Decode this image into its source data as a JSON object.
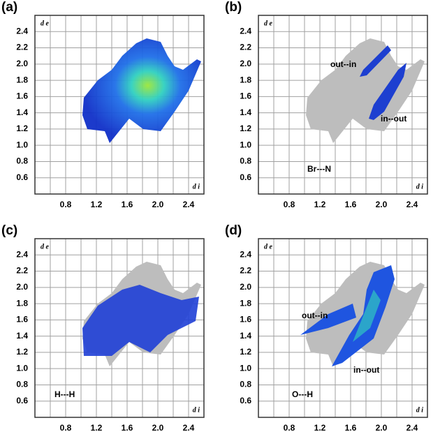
{
  "chart_data": [
    {
      "type": "scatter",
      "panel_label": "(a)",
      "xlabel": "d i",
      "ylabel": "d e",
      "xlim": [
        0.4,
        2.6
      ],
      "ylim": [
        0.4,
        2.6
      ],
      "xticks": [
        0.8,
        1.2,
        1.6,
        {
          "value": 2,
          "label": "2.0"
        },
        2.4
      ],
      "yticks": [
        0.6,
        0.8,
        {
          "value": 1,
          "label": "1.0"
        },
        1.2,
        1.4,
        1.6,
        1.8,
        {
          "value": 2,
          "label": "2.0"
        },
        2.2,
        2.4
      ],
      "grid": true,
      "annotations": []
    },
    {
      "type": "scatter",
      "panel_label": "(b)",
      "xlabel": "d i",
      "ylabel": "d e",
      "xlim": [
        0.4,
        2.6
      ],
      "ylim": [
        0.4,
        2.6
      ],
      "xticks": [
        0.8,
        1.2,
        1.6,
        {
          "value": 2,
          "label": "2.0"
        },
        2.4
      ],
      "yticks": [
        0.6,
        0.8,
        {
          "value": 1,
          "label": "1.0"
        },
        1.2,
        1.4,
        1.6,
        1.8,
        {
          "value": 2,
          "label": "2.0"
        },
        2.2,
        2.4
      ],
      "grid": true,
      "annotations": [
        "out--in",
        "in--out",
        "Br---N"
      ]
    },
    {
      "type": "scatter",
      "panel_label": "(c)",
      "xlabel": "d i",
      "ylabel": "d e",
      "xlim": [
        0.4,
        2.6
      ],
      "ylim": [
        0.4,
        2.6
      ],
      "xticks": [
        0.8,
        1.2,
        1.6,
        {
          "value": 2,
          "label": "2.0"
        },
        2.4
      ],
      "yticks": [
        0.6,
        0.8,
        {
          "value": 1,
          "label": "1.0"
        },
        1.2,
        1.4,
        1.6,
        1.8,
        {
          "value": 2,
          "label": "2.0"
        },
        2.2,
        2.4
      ],
      "grid": true,
      "annotations": [
        "H---H"
      ]
    },
    {
      "type": "scatter",
      "panel_label": "(d)",
      "xlabel": "d i",
      "ylabel": "d e",
      "xlim": [
        0.4,
        2.6
      ],
      "ylim": [
        0.4,
        2.6
      ],
      "xticks": [
        0.8,
        1.2,
        1.6,
        {
          "value": 2,
          "label": "2.0"
        },
        2.4
      ],
      "yticks": [
        0.6,
        0.8,
        {
          "value": 1,
          "label": "1.0"
        },
        1.2,
        1.4,
        1.6,
        1.8,
        {
          "value": 2,
          "label": "2.0"
        },
        2.2,
        2.4
      ],
      "grid": true,
      "annotations": [
        "out--in",
        "in--out",
        "O---H"
      ]
    }
  ]
}
